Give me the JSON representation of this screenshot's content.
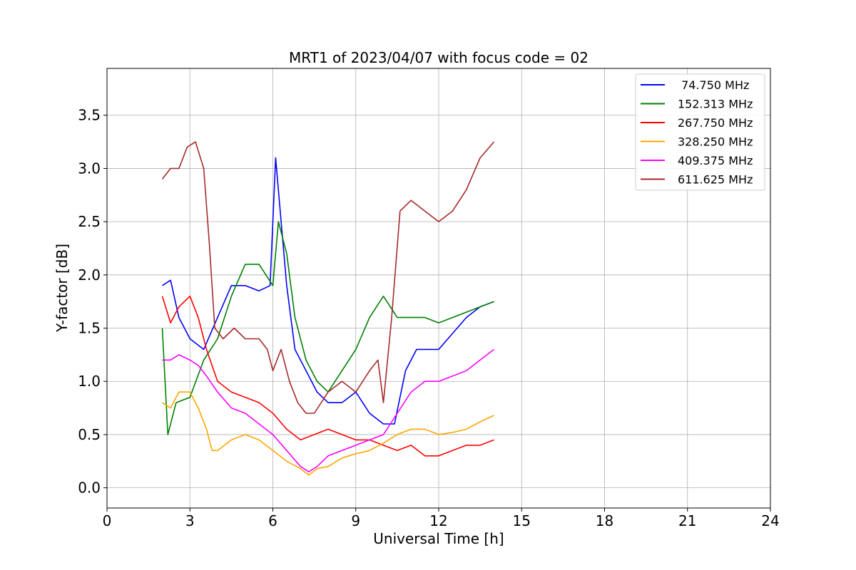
{
  "chart_data": {
    "type": "line",
    "title": "MRT1 of 2023/04/07 with focus code = 02",
    "xlabel": "Universal Time [h]",
    "ylabel": "Y-factor [dB]",
    "xlim": [
      0,
      24
    ],
    "ylim": [
      -0.19,
      3.94
    ],
    "xticks": [
      0,
      3,
      6,
      9,
      12,
      15,
      18,
      21,
      24
    ],
    "xtick_labels": [
      "0",
      "3",
      "6",
      "9",
      "12",
      "15",
      "18",
      "21",
      "24"
    ],
    "yticks": [
      0.0,
      0.5,
      1.0,
      1.5,
      2.0,
      2.5,
      3.0,
      3.5
    ],
    "ytick_labels": [
      "0.0",
      "0.5",
      "1.0",
      "1.5",
      "2.0",
      "2.5",
      "3.0",
      "3.5"
    ],
    "grid": true,
    "legend_position": "top-right",
    "series": [
      {
        "name": " 74.750 MHz",
        "color": "#0000ff",
        "x": [
          2.0,
          2.3,
          2.6,
          3.0,
          3.5,
          4.0,
          4.5,
          5.0,
          5.5,
          5.9,
          6.1,
          6.3,
          6.5,
          6.8,
          7.2,
          7.6,
          8.0,
          8.5,
          9.0,
          9.5,
          10.0,
          10.4,
          10.8,
          11.2,
          11.6,
          12.0,
          12.5,
          13.0,
          13.5,
          14.0
        ],
        "y": [
          1.9,
          1.95,
          1.6,
          1.4,
          1.3,
          1.6,
          1.9,
          1.9,
          1.85,
          1.9,
          3.1,
          2.5,
          1.9,
          1.3,
          1.1,
          0.9,
          0.8,
          0.8,
          0.9,
          0.7,
          0.6,
          0.6,
          1.1,
          1.3,
          1.3,
          1.3,
          1.45,
          1.6,
          1.7,
          1.75
        ]
      },
      {
        "name": "152.313 MHz",
        "color": "#008000",
        "x": [
          2.0,
          2.2,
          2.5,
          3.0,
          3.5,
          4.0,
          4.5,
          5.0,
          5.5,
          6.0,
          6.2,
          6.5,
          6.8,
          7.2,
          7.6,
          8.0,
          8.5,
          9.0,
          9.5,
          10.0,
          10.5,
          11.0,
          11.5,
          12.0,
          12.5,
          13.0,
          13.5,
          14.0
        ],
        "y": [
          1.5,
          0.5,
          0.8,
          0.85,
          1.2,
          1.4,
          1.8,
          2.1,
          2.1,
          1.9,
          2.5,
          2.2,
          1.6,
          1.2,
          1.0,
          0.9,
          1.1,
          1.3,
          1.6,
          1.8,
          1.6,
          1.6,
          1.6,
          1.55,
          1.6,
          1.65,
          1.7,
          1.75
        ]
      },
      {
        "name": "267.750 MHz",
        "color": "#ff0000",
        "x": [
          2.0,
          2.3,
          2.6,
          3.0,
          3.3,
          3.6,
          4.0,
          4.5,
          5.0,
          5.5,
          6.0,
          6.5,
          7.0,
          7.5,
          8.0,
          8.5,
          9.0,
          9.5,
          10.0,
          10.5,
          11.0,
          11.5,
          12.0,
          12.5,
          13.0,
          13.5,
          14.0
        ],
        "y": [
          1.8,
          1.55,
          1.7,
          1.8,
          1.6,
          1.3,
          1.0,
          0.9,
          0.85,
          0.8,
          0.7,
          0.55,
          0.45,
          0.5,
          0.55,
          0.5,
          0.45,
          0.45,
          0.4,
          0.35,
          0.4,
          0.3,
          0.3,
          0.35,
          0.4,
          0.4,
          0.45
        ]
      },
      {
        "name": "328.250 MHz",
        "color": "#ffa500",
        "x": [
          2.0,
          2.3,
          2.6,
          3.0,
          3.3,
          3.6,
          3.8,
          4.0,
          4.5,
          5.0,
          5.5,
          6.0,
          6.5,
          7.0,
          7.3,
          7.6,
          8.0,
          8.5,
          9.0,
          9.5,
          10.0,
          10.5,
          11.0,
          11.5,
          12.0,
          12.5,
          13.0,
          13.5,
          14.0
        ],
        "y": [
          0.8,
          0.75,
          0.9,
          0.9,
          0.75,
          0.55,
          0.35,
          0.35,
          0.45,
          0.5,
          0.45,
          0.35,
          0.25,
          0.18,
          0.12,
          0.18,
          0.2,
          0.28,
          0.32,
          0.35,
          0.42,
          0.5,
          0.55,
          0.55,
          0.5,
          0.52,
          0.55,
          0.62,
          0.68
        ]
      },
      {
        "name": "409.375 MHz",
        "color": "#ff00ff",
        "x": [
          2.0,
          2.3,
          2.6,
          3.0,
          3.3,
          3.6,
          4.0,
          4.5,
          5.0,
          5.5,
          6.0,
          6.5,
          7.0,
          7.3,
          7.6,
          8.0,
          8.5,
          9.0,
          9.5,
          10.0,
          10.5,
          11.0,
          11.5,
          12.0,
          12.5,
          13.0,
          13.5,
          14.0
        ],
        "y": [
          1.2,
          1.2,
          1.25,
          1.2,
          1.15,
          1.05,
          0.9,
          0.75,
          0.7,
          0.6,
          0.5,
          0.35,
          0.2,
          0.15,
          0.2,
          0.3,
          0.35,
          0.4,
          0.45,
          0.5,
          0.7,
          0.9,
          1.0,
          1.0,
          1.05,
          1.1,
          1.2,
          1.3
        ]
      },
      {
        "name": "611.625 MHz",
        "color": "#a52a2a",
        "x": [
          2.0,
          2.3,
          2.6,
          2.9,
          3.2,
          3.5,
          3.7,
          3.9,
          4.2,
          4.6,
          5.0,
          5.5,
          5.8,
          6.0,
          6.3,
          6.6,
          6.9,
          7.2,
          7.5,
          8.0,
          8.5,
          9.0,
          9.5,
          9.8,
          10.0,
          10.3,
          10.6,
          11.0,
          11.5,
          12.0,
          12.5,
          13.0,
          13.5,
          14.0
        ],
        "y": [
          2.9,
          3.0,
          3.0,
          3.2,
          3.25,
          3.0,
          2.3,
          1.5,
          1.4,
          1.5,
          1.4,
          1.4,
          1.3,
          1.1,
          1.3,
          1.0,
          0.8,
          0.7,
          0.7,
          0.9,
          1.0,
          0.9,
          1.1,
          1.2,
          0.8,
          1.6,
          2.6,
          2.7,
          2.6,
          2.5,
          2.6,
          2.8,
          3.1,
          3.25
        ]
      }
    ]
  }
}
